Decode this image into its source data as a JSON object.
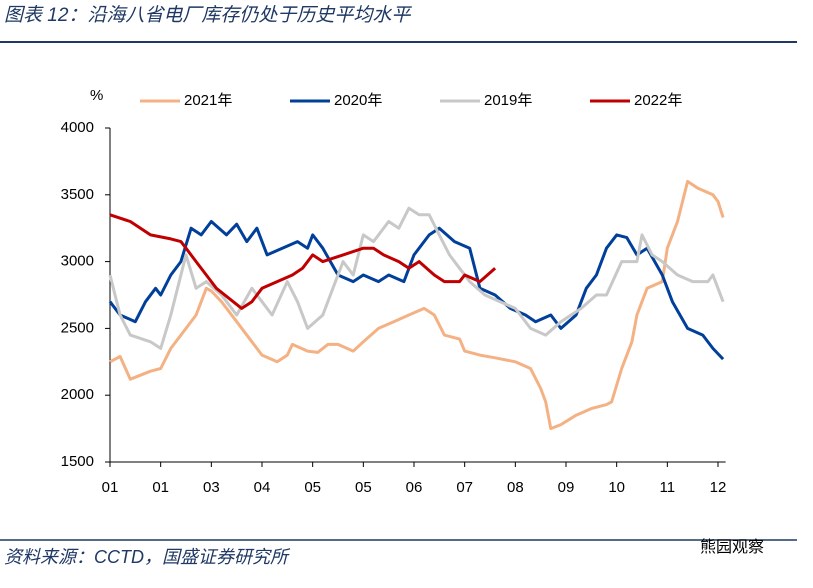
{
  "header": {
    "title": "图表 12：沿海八省电厂库存仍处于历史平均水平"
  },
  "chart_data": {
    "type": "line",
    "y_label": "%",
    "xlim": [
      0,
      12.15
    ],
    "xticks": [
      {
        "value": 0,
        "label": "01"
      },
      {
        "value": 1,
        "label": "01"
      },
      {
        "value": 2,
        "label": "03"
      },
      {
        "value": 3,
        "label": "04"
      },
      {
        "value": 4,
        "label": "05"
      },
      {
        "value": 5,
        "label": "05"
      },
      {
        "value": 6,
        "label": "06"
      },
      {
        "value": 7,
        "label": "07"
      },
      {
        "value": 8,
        "label": "08"
      },
      {
        "value": 9,
        "label": "09"
      },
      {
        "value": 10,
        "label": "10"
      },
      {
        "value": 11,
        "label": "11"
      },
      {
        "value": 12,
        "label": "12"
      }
    ],
    "ylim": [
      1500,
      4000
    ],
    "yticks": [
      1500,
      2000,
      2500,
      3000,
      3500,
      4000
    ],
    "legend": "top",
    "series": [
      {
        "name": "2021年",
        "color": "#f4b183",
        "x": [
          0,
          0.2,
          0.4,
          0.8,
          1.0,
          1.2,
          1.5,
          1.7,
          1.9,
          2.0,
          2.2,
          2.5,
          2.8,
          3.0,
          3.3,
          3.5,
          3.6,
          3.9,
          4.1,
          4.3,
          4.5,
          4.8,
          5.0,
          5.3,
          5.6,
          5.9,
          6.2,
          6.4,
          6.6,
          6.9,
          7.0,
          7.3,
          7.6,
          8.0,
          8.3,
          8.5,
          8.6,
          8.7,
          8.9,
          9.2,
          9.5,
          9.8,
          9.9,
          10.1,
          10.3,
          10.4,
          10.6,
          10.9,
          11.0,
          11.2,
          11.4,
          11.6,
          11.9,
          12.0,
          12.1
        ],
        "values": [
          2250,
          2290,
          2120,
          2180,
          2200,
          2350,
          2500,
          2600,
          2800,
          2780,
          2700,
          2550,
          2400,
          2300,
          2250,
          2300,
          2380,
          2330,
          2320,
          2380,
          2380,
          2330,
          2400,
          2500,
          2550,
          2600,
          2650,
          2600,
          2450,
          2420,
          2330,
          2300,
          2280,
          2250,
          2200,
          2050,
          1950,
          1750,
          1780,
          1850,
          1900,
          1930,
          1950,
          2200,
          2400,
          2600,
          2800,
          2850,
          3100,
          3300,
          3600,
          3550,
          3500,
          3450,
          3330
        ]
      },
      {
        "name": "2020年",
        "color": "#003f9a",
        "x": [
          0,
          0.2,
          0.5,
          0.7,
          0.9,
          1.0,
          1.2,
          1.4,
          1.6,
          1.8,
          2.0,
          2.3,
          2.5,
          2.7,
          2.9,
          3.1,
          3.4,
          3.7,
          3.9,
          4.0,
          4.2,
          4.5,
          4.8,
          5.0,
          5.3,
          5.5,
          5.8,
          6.0,
          6.3,
          6.5,
          6.8,
          7.1,
          7.3,
          7.6,
          7.9,
          8.2,
          8.4,
          8.7,
          8.9,
          9.2,
          9.4,
          9.6,
          9.8,
          10.0,
          10.2,
          10.4,
          10.6,
          10.9,
          11.1,
          11.4,
          11.7,
          11.9,
          12.1
        ],
        "values": [
          2700,
          2600,
          2550,
          2700,
          2800,
          2750,
          2900,
          3000,
          3250,
          3200,
          3300,
          3200,
          3280,
          3150,
          3250,
          3050,
          3100,
          3150,
          3100,
          3200,
          3100,
          2900,
          2850,
          2900,
          2850,
          2900,
          2850,
          3050,
          3200,
          3250,
          3150,
          3100,
          2800,
          2750,
          2650,
          2600,
          2550,
          2600,
          2500,
          2600,
          2800,
          2900,
          3100,
          3200,
          3180,
          3050,
          3100,
          2900,
          2700,
          2500,
          2450,
          2350,
          2270
        ]
      },
      {
        "name": "2019年",
        "color": "#c8c8c8",
        "x": [
          0,
          0.2,
          0.4,
          0.8,
          1.0,
          1.2,
          1.4,
          1.5,
          1.7,
          1.9,
          2.2,
          2.5,
          2.8,
          3.0,
          3.2,
          3.5,
          3.7,
          3.9,
          4.2,
          4.4,
          4.6,
          4.8,
          5.0,
          5.2,
          5.5,
          5.7,
          5.9,
          6.1,
          6.3,
          6.5,
          6.7,
          6.9,
          7.1,
          7.4,
          7.7,
          8.0,
          8.3,
          8.6,
          8.9,
          9.1,
          9.3,
          9.6,
          9.8,
          10.1,
          10.4,
          10.5,
          10.7,
          10.9,
          11.2,
          11.5,
          11.8,
          11.9,
          12.1
        ],
        "values": [
          2900,
          2600,
          2450,
          2400,
          2350,
          2600,
          2900,
          3050,
          2800,
          2850,
          2750,
          2600,
          2800,
          2700,
          2600,
          2850,
          2700,
          2500,
          2600,
          2800,
          3000,
          2900,
          3200,
          3150,
          3300,
          3250,
          3400,
          3350,
          3350,
          3200,
          3050,
          2950,
          2850,
          2750,
          2700,
          2650,
          2500,
          2450,
          2550,
          2600,
          2650,
          2750,
          2750,
          3000,
          3000,
          3200,
          3050,
          3000,
          2900,
          2850,
          2850,
          2900,
          2700
        ]
      },
      {
        "name": "2022年",
        "color": "#c00000",
        "x": [
          0,
          0.4,
          0.8,
          1.2,
          1.4,
          1.5,
          1.7,
          1.9,
          2.1,
          2.6,
          2.8,
          3.0,
          3.3,
          3.6,
          3.8,
          4.0,
          4.2,
          4.6,
          5.0,
          5.2,
          5.4,
          5.7,
          5.9,
          6.1,
          6.4,
          6.6,
          6.9,
          7.0,
          7.3,
          7.6
        ],
        "values": [
          3350,
          3300,
          3200,
          3170,
          3150,
          3100,
          3000,
          2900,
          2800,
          2650,
          2700,
          2800,
          2850,
          2900,
          2950,
          3050,
          3000,
          3050,
          3100,
          3100,
          3050,
          3000,
          2950,
          3000,
          2900,
          2850,
          2850,
          2900,
          2850,
          2950
        ]
      }
    ]
  },
  "footer": {
    "source": "资料来源：CCTD，国盛证券研究所",
    "watermark": "熊园观察"
  }
}
